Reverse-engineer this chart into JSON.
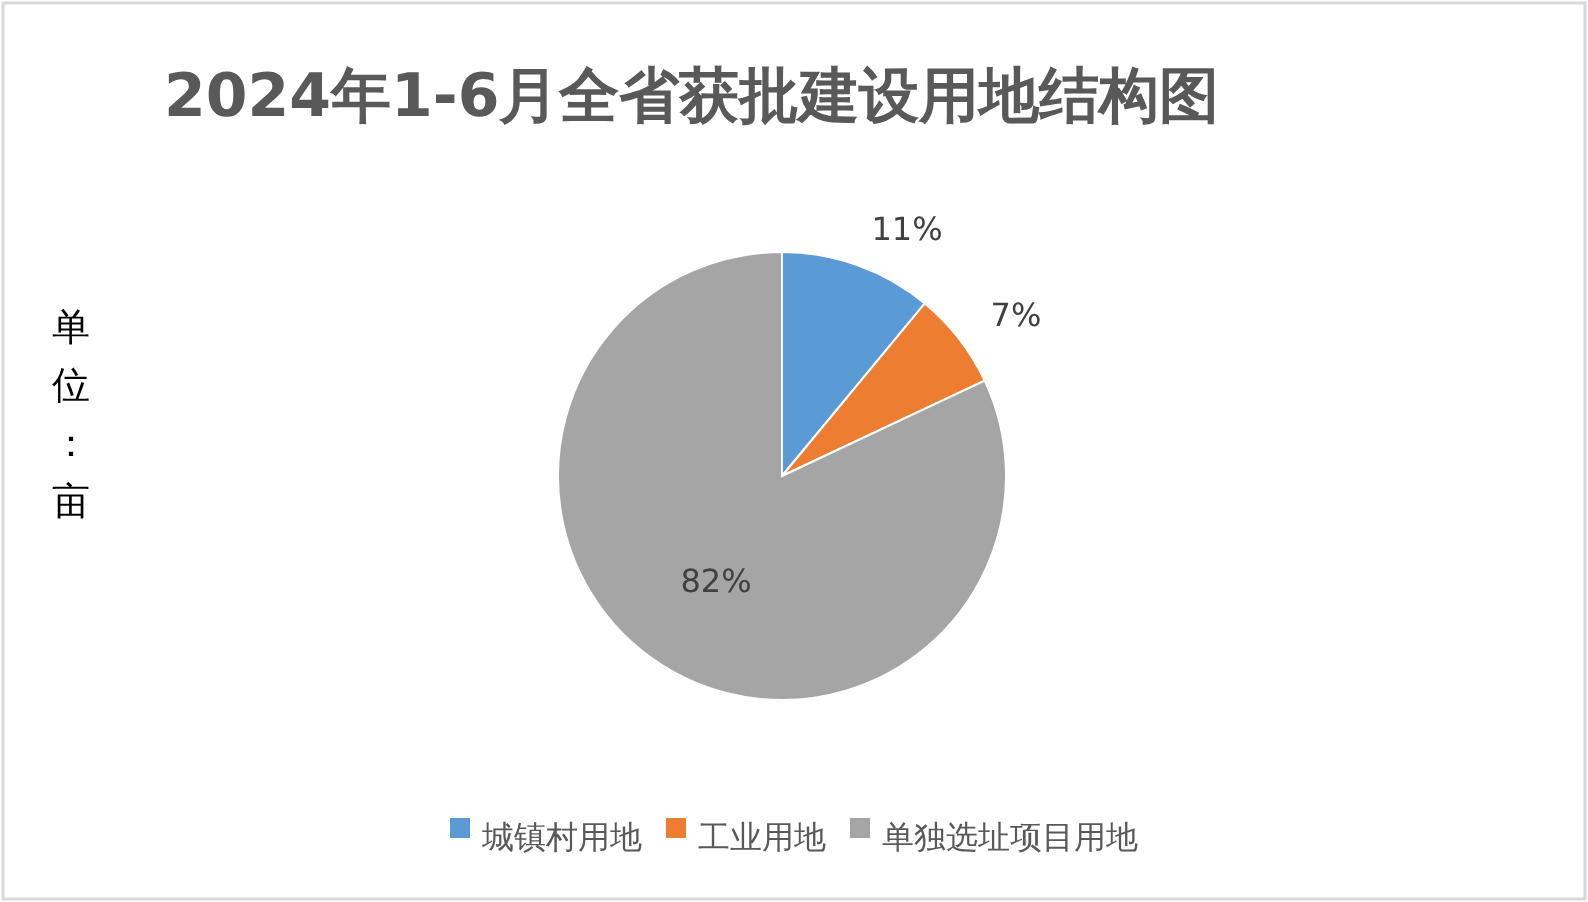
{
  "chart_data": {
    "type": "pie",
    "title": "2024年1-6月全省获批建设用地结构图",
    "categories": [
      "城镇村用地",
      "工业用地",
      "单独选址项目用地"
    ],
    "values": [
      11,
      7,
      82
    ],
    "colors": [
      "#5b9bd5",
      "#ed7d31",
      "#a5a5a5"
    ],
    "value_labels": [
      "11%",
      "7%",
      "82%"
    ],
    "annotations": [
      "单位：亩"
    ],
    "legend": "bottom"
  }
}
